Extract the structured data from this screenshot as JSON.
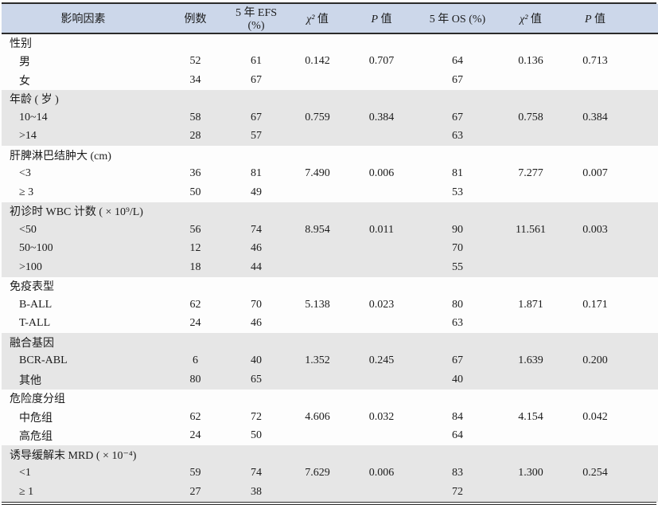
{
  "colors": {
    "header_bg": "#ccd7ea",
    "stripe_bg": "#e6e6e6",
    "rule_dark": "#2b2b2b"
  },
  "table": {
    "header": {
      "factor": "影响因素",
      "n": "例数",
      "efs": "5 年 EFS (%)",
      "chi1_sym": "χ²",
      "chi1_suffix": " 值",
      "p1_sym": "P",
      "p1_suffix": " 值",
      "os": "5 年 OS (%)",
      "chi2_sym": "χ²",
      "chi2_suffix": " 值",
      "p2_sym": "P",
      "p2_suffix": " 值"
    },
    "sections": [
      {
        "label": "性别",
        "shaded": false,
        "rows": [
          {
            "label": "男",
            "cells": [
              "52",
              "61",
              "0.142",
              "0.707",
              "64",
              "0.136",
              "0.713"
            ]
          },
          {
            "label": "女",
            "cells": [
              "34",
              "67",
              "",
              "",
              "67",
              "",
              ""
            ]
          }
        ]
      },
      {
        "label": "年龄 ( 岁 )",
        "shaded": true,
        "rows": [
          {
            "label": "10~14",
            "cells": [
              "58",
              "67",
              "0.759",
              "0.384",
              "67",
              "0.758",
              "0.384"
            ]
          },
          {
            "label": ">14",
            "cells": [
              "28",
              "57",
              "",
              "",
              "63",
              "",
              ""
            ]
          }
        ]
      },
      {
        "label": "肝脾淋巴结肿大 (cm)",
        "shaded": false,
        "rows": [
          {
            "label": "<3",
            "cells": [
              "36",
              "81",
              "7.490",
              "0.006",
              "81",
              "7.277",
              "0.007"
            ]
          },
          {
            "label": "≥ 3",
            "cells": [
              "50",
              "49",
              "",
              "",
              "53",
              "",
              ""
            ]
          }
        ]
      },
      {
        "label": "初诊时 WBC 计数 ( × 10⁹/L)",
        "shaded": true,
        "rows": [
          {
            "label": "<50",
            "cells": [
              "56",
              "74",
              "8.954",
              "0.011",
              "90",
              "11.561",
              "0.003"
            ]
          },
          {
            "label": "50~100",
            "cells": [
              "12",
              "46",
              "",
              "",
              "70",
              "",
              ""
            ]
          },
          {
            "label": ">100",
            "cells": [
              "18",
              "44",
              "",
              "",
              "55",
              "",
              ""
            ]
          }
        ]
      },
      {
        "label": "免疫表型",
        "shaded": false,
        "rows": [
          {
            "label": "B-ALL",
            "cells": [
              "62",
              "70",
              "5.138",
              "0.023",
              "80",
              "1.871",
              "0.171"
            ]
          },
          {
            "label": "T-ALL",
            "cells": [
              "24",
              "46",
              "",
              "",
              "63",
              "",
              ""
            ]
          }
        ]
      },
      {
        "label": "融合基因",
        "shaded": true,
        "rows": [
          {
            "label": "BCR-ABL",
            "cells": [
              "6",
              "40",
              "1.352",
              "0.245",
              "67",
              "1.639",
              "0.200"
            ]
          },
          {
            "label": "其他",
            "cells": [
              "80",
              "65",
              "",
              "",
              "40",
              "",
              ""
            ]
          }
        ]
      },
      {
        "label": "危险度分组",
        "shaded": false,
        "rows": [
          {
            "label": "中危组",
            "cells": [
              "62",
              "72",
              "4.606",
              "0.032",
              "84",
              "4.154",
              "0.042"
            ]
          },
          {
            "label": "高危组",
            "cells": [
              "24",
              "50",
              "",
              "",
              "64",
              "",
              ""
            ]
          }
        ]
      },
      {
        "label": "诱导缓解末 MRD ( × 10⁻⁴)",
        "shaded": true,
        "rows": [
          {
            "label": "<1",
            "cells": [
              "59",
              "74",
              "7.629",
              "0.006",
              "83",
              "1.300",
              "0.254"
            ]
          },
          {
            "label": "≥ 1",
            "cells": [
              "27",
              "38",
              "",
              "",
              "72",
              "",
              ""
            ]
          }
        ]
      }
    ]
  }
}
